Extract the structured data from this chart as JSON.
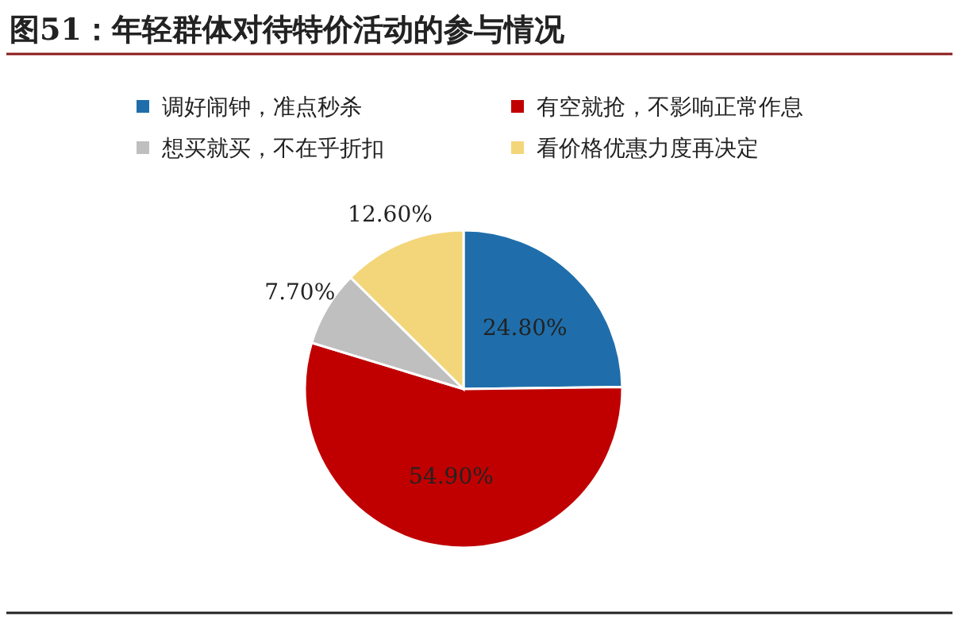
{
  "chart_data": {
    "type": "pie",
    "title": "图51：年轻群体对待特价活动的参与情况",
    "categories": [
      "调好闹钟，准点秒杀",
      "有空就抢，不影响正常作息",
      "想买就买，不在乎折扣",
      "看价格优惠力度再决定"
    ],
    "values": [
      24.8,
      54.9,
      7.7,
      12.6
    ],
    "colors": [
      "#1f6eab",
      "#c00000",
      "#bfbfbf",
      "#f3d67a"
    ],
    "value_labels": [
      "24.80%",
      "54.90%",
      "7.70%",
      "12.60%"
    ],
    "legend": "top"
  }
}
